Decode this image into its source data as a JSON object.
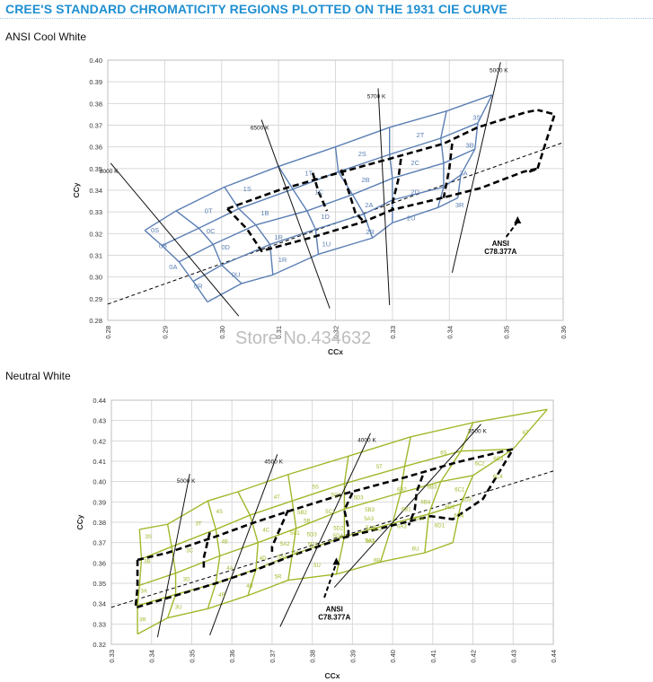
{
  "page": {
    "title": "CREE'S STANDARD CHROMATICITY REGIONS PLOTTED ON THE 1931 CIE CURVE",
    "watermark": "Store No.434632"
  },
  "chart_data": [
    {
      "type": "scatter",
      "section_title": "ANSI Cool White",
      "xlabel": "CCx",
      "ylabel": "CCy",
      "xlim": [
        0.28,
        0.36
      ],
      "ylim": [
        0.28,
        0.4
      ],
      "xticks": [
        "0.28",
        "0.29",
        "0.30",
        "0.31",
        "0.32",
        "0.33",
        "0.34",
        "0.35",
        "0.36"
      ],
      "yticks": [
        "0.28",
        "0.29",
        "0.30",
        "0.31",
        "0.32",
        "0.33",
        "0.34",
        "0.35",
        "0.36",
        "0.37",
        "0.38",
        "0.39",
        "0.40"
      ],
      "grid": true,
      "colors": {
        "bins": "#5b7fb4",
        "label": "#5b7fb4"
      },
      "boundary_lines": [
        {
          "x1": 0.2865,
          "y1": 0.3215,
          "x2": 0.316,
          "y2": 0.364
        },
        {
          "x1": 0.2925,
          "y1": 0.307,
          "x2": 0.3255,
          "y2": 0.352
        },
        {
          "x1": 0.2895,
          "y1": 0.2945,
          "x2": 0.327,
          "y2": 0.31
        },
        {
          "x1": 0.327,
          "y1": 0.31,
          "x2": 0.342,
          "y2": 0.331
        },
        {
          "x1": 0.31,
          "y1": 0.31,
          "x2": 0.332,
          "y2": 0.3215
        },
        {
          "x1": 0.2975,
          "y1": 0.2885,
          "x2": 0.342,
          "y2": 0.331
        }
      ],
      "cells": [
        {
          "poly": [
            [
              0.2865,
              0.3215
            ],
            [
              0.2975,
              0.331
            ],
            [
              0.3025,
              0.3415
            ],
            [
              0.292,
              0.3295
            ]
          ],
          "label": "0S"
        },
        {
          "poly": [
            [
              0.292,
              0.3295
            ],
            [
              0.3025,
              0.3415
            ],
            [
              0.304,
              0.3415
            ],
            [
              0.2935,
              0.3295
            ]
          ],
          "label": "0T"
        }
      ],
      "labels": [
        {
          "text": "0S",
          "x": 0.2883,
          "y": 0.3217
        },
        {
          "text": "0T",
          "x": 0.2977,
          "y": 0.3307
        },
        {
          "text": "0B",
          "x": 0.2897,
          "y": 0.3145
        },
        {
          "text": "0C",
          "x": 0.2981,
          "y": 0.3213
        },
        {
          "text": "0A",
          "x": 0.2915,
          "y": 0.3049
        },
        {
          "text": "0D",
          "x": 0.3007,
          "y": 0.3139
        },
        {
          "text": "0R",
          "x": 0.2959,
          "y": 0.2959
        },
        {
          "text": "0U",
          "x": 0.3025,
          "y": 0.3013
        },
        {
          "text": "1S",
          "x": 0.3045,
          "y": 0.3409
        },
        {
          "text": "1B",
          "x": 0.3076,
          "y": 0.3297
        },
        {
          "text": "1R",
          "x": 0.31,
          "y": 0.3185
        },
        {
          "text": "1R",
          "x": 0.3107,
          "y": 0.3081
        },
        {
          "text": "1T",
          "x": 0.3153,
          "y": 0.3481
        },
        {
          "text": "1C",
          "x": 0.3171,
          "y": 0.3393
        },
        {
          "text": "1D",
          "x": 0.3182,
          "y": 0.3281
        },
        {
          "text": "1U",
          "x": 0.3184,
          "y": 0.3153
        },
        {
          "text": "2S",
          "x": 0.3247,
          "y": 0.3569
        },
        {
          "text": "2B",
          "x": 0.3253,
          "y": 0.3449
        },
        {
          "text": "2A",
          "x": 0.3259,
          "y": 0.3333
        },
        {
          "text": "2R",
          "x": 0.3261,
          "y": 0.3209
        },
        {
          "text": "2T",
          "x": 0.3349,
          "y": 0.3657
        },
        {
          "text": "2C",
          "x": 0.334,
          "y": 0.3529
        },
        {
          "text": "2D",
          "x": 0.334,
          "y": 0.3393
        },
        {
          "text": "2U",
          "x": 0.3333,
          "y": 0.3273
        },
        {
          "text": "3S",
          "x": 0.3448,
          "y": 0.3737
        },
        {
          "text": "3B",
          "x": 0.3436,
          "y": 0.3609
        },
        {
          "text": "3A",
          "x": 0.3425,
          "y": 0.3481
        },
        {
          "text": "3R",
          "x": 0.3418,
          "y": 0.3333
        }
      ],
      "cct_lines": [
        {
          "label": "8000 K",
          "x1": 0.2805,
          "y1": 0.3525,
          "x2": 0.303,
          "y2": 0.282
        },
        {
          "label": "6500 K",
          "x1": 0.307,
          "y1": 0.3725,
          "x2": 0.319,
          "y2": 0.2855
        },
        {
          "label": "5700 K",
          "x1": 0.3275,
          "y1": 0.387,
          "x2": 0.3295,
          "y2": 0.287
        },
        {
          "label": "5000 K",
          "x1": 0.349,
          "y1": 0.399,
          "x2": 0.3405,
          "y2": 0.302
        }
      ],
      "annotation": "ANSI\nC78.377A",
      "blackbody_locus": [
        [
          0.28,
          0.2875
        ],
        [
          0.36,
          0.362
        ]
      ]
    },
    {
      "type": "scatter",
      "section_title": "Neutral White",
      "xlabel": "CCx",
      "ylabel": "CCy",
      "xlim": [
        0.33,
        0.44
      ],
      "ylim": [
        0.32,
        0.44
      ],
      "xticks": [
        "0.33",
        "0.34",
        "0.35",
        "0.36",
        "0.37",
        "0.38",
        "0.39",
        "0.40",
        "0.41",
        "0.42",
        "0.43",
        "0.44"
      ],
      "yticks": [
        "0.32",
        "0.33",
        "0.34",
        "0.35",
        "0.36",
        "0.37",
        "0.38",
        "0.39",
        "0.40",
        "0.41",
        "0.42",
        "0.43",
        "0.44"
      ],
      "grid": true,
      "colors": {
        "bins": "#a3b72b",
        "label": "#a3b72b"
      },
      "labels": [
        {
          "text": "3S",
          "x": 0.3392,
          "y": 0.3733
        },
        {
          "text": "3B",
          "x": 0.3389,
          "y": 0.3613
        },
        {
          "text": "3A",
          "x": 0.3381,
          "y": 0.3468
        },
        {
          "text": "3R",
          "x": 0.3378,
          "y": 0.3325
        },
        {
          "text": "3T",
          "x": 0.3517,
          "y": 0.3798
        },
        {
          "text": "3C",
          "x": 0.3495,
          "y": 0.3665
        },
        {
          "text": "3D",
          "x": 0.3487,
          "y": 0.3525
        },
        {
          "text": "3U",
          "x": 0.3467,
          "y": 0.3387
        },
        {
          "text": "4S",
          "x": 0.3569,
          "y": 0.3857
        },
        {
          "text": "4B",
          "x": 0.3582,
          "y": 0.3709
        },
        {
          "text": "4A",
          "x": 0.3595,
          "y": 0.358
        },
        {
          "text": "4R",
          "x": 0.3575,
          "y": 0.3448
        },
        {
          "text": "4T",
          "x": 0.3712,
          "y": 0.3929
        },
        {
          "text": "4C",
          "x": 0.3685,
          "y": 0.3768
        },
        {
          "text": "4D",
          "x": 0.3677,
          "y": 0.3628
        },
        {
          "text": "4U",
          "x": 0.3644,
          "y": 0.3492
        },
        {
          "text": "5S",
          "x": 0.3808,
          "y": 0.3978
        },
        {
          "text": "5B2",
          "x": 0.3775,
          "y": 0.3854
        },
        {
          "text": "5B1",
          "x": 0.3757,
          "y": 0.3752
        },
        {
          "text": "5A2",
          "x": 0.3732,
          "y": 0.3699
        },
        {
          "text": "5A1",
          "x": 0.3725,
          "y": 0.3635
        },
        {
          "text": "5R",
          "x": 0.3715,
          "y": 0.3537
        },
        {
          "text": "5C2",
          "x": 0.3859,
          "y": 0.3938
        },
        {
          "text": "5C1",
          "x": 0.3845,
          "y": 0.3858
        },
        {
          "text": "5B",
          "x": 0.3787,
          "y": 0.3812
        },
        {
          "text": "5D2",
          "x": 0.3865,
          "y": 0.3776
        },
        {
          "text": "5D1",
          "x": 0.3801,
          "y": 0.3696
        },
        {
          "text": "5A",
          "x": 0.3759,
          "y": 0.3655
        },
        {
          "text": "5D4",
          "x": 0.3864,
          "y": 0.3738
        },
        {
          "text": "5D3",
          "x": 0.3799,
          "y": 0.3745
        },
        {
          "text": "5U",
          "x": 0.3812,
          "y": 0.3592
        },
        {
          "text": "5T",
          "x": 0.3967,
          "y": 0.4078
        },
        {
          "text": "5D3",
          "x": 0.3915,
          "y": 0.3926
        },
        {
          "text": "5B3",
          "x": 0.3943,
          "y": 0.3866
        },
        {
          "text": "5A3",
          "x": 0.3941,
          "y": 0.3822
        },
        {
          "text": "5A2",
          "x": 0.3945,
          "y": 0.3778
        },
        {
          "text": "5A1",
          "x": 0.3943,
          "y": 0.3713
        },
        {
          "text": "6A1",
          "x": 0.3946,
          "y": 0.3712
        },
        {
          "text": "6B",
          "x": 0.3961,
          "y": 0.3616
        },
        {
          "text": "6B2",
          "x": 0.4023,
          "y": 0.3966
        },
        {
          "text": "6B1",
          "x": 0.4034,
          "y": 0.3868
        },
        {
          "text": "6A3",
          "x": 0.4023,
          "y": 0.3784
        },
        {
          "text": "6A2",
          "x": 0.3962,
          "y": 0.3772
        },
        {
          "text": "6S",
          "x": 0.4127,
          "y": 0.4146
        },
        {
          "text": "6B3",
          "x": 0.4098,
          "y": 0.3978
        },
        {
          "text": "6B4",
          "x": 0.4082,
          "y": 0.3904
        },
        {
          "text": "6A4",
          "x": 0.4066,
          "y": 0.3822
        },
        {
          "text": "6C2",
          "x": 0.4217,
          "y": 0.4094
        },
        {
          "text": "6C1",
          "x": 0.4167,
          "y": 0.3966
        },
        {
          "text": "6D2",
          "x": 0.4143,
          "y": 0.388
        },
        {
          "text": "6D1",
          "x": 0.4117,
          "y": 0.379
        },
        {
          "text": "6U",
          "x": 0.4057,
          "y": 0.3674
        },
        {
          "text": "6T",
          "x": 0.4331,
          "y": 0.4246
        },
        {
          "text": "6C3",
          "x": 0.4263,
          "y": 0.4118
        },
        {
          "text": "6C4",
          "x": 0.4262,
          "y": 0.403
        },
        {
          "text": "6D3",
          "x": 0.4184,
          "y": 0.3918
        },
        {
          "text": "6D4",
          "x": 0.4165,
          "y": 0.3838
        }
      ],
      "cct_lines": [
        {
          "label": "5000 K",
          "x1": 0.3495,
          "y1": 0.4038,
          "x2": 0.3415,
          "y2": 0.3235
        },
        {
          "label": "4500 K",
          "x1": 0.3713,
          "y1": 0.4134,
          "x2": 0.3545,
          "y2": 0.3245
        },
        {
          "label": "4000 K",
          "x1": 0.3945,
          "y1": 0.4238,
          "x2": 0.372,
          "y2": 0.3286
        },
        {
          "label": "3500 K",
          "x1": 0.422,
          "y1": 0.4282,
          "x2": 0.3855,
          "y2": 0.348
        }
      ],
      "annotation": "ANSI\nC78.377A",
      "blackbody_locus": [
        [
          0.33,
          0.3382
        ],
        [
          0.44,
          0.4052
        ]
      ]
    }
  ]
}
